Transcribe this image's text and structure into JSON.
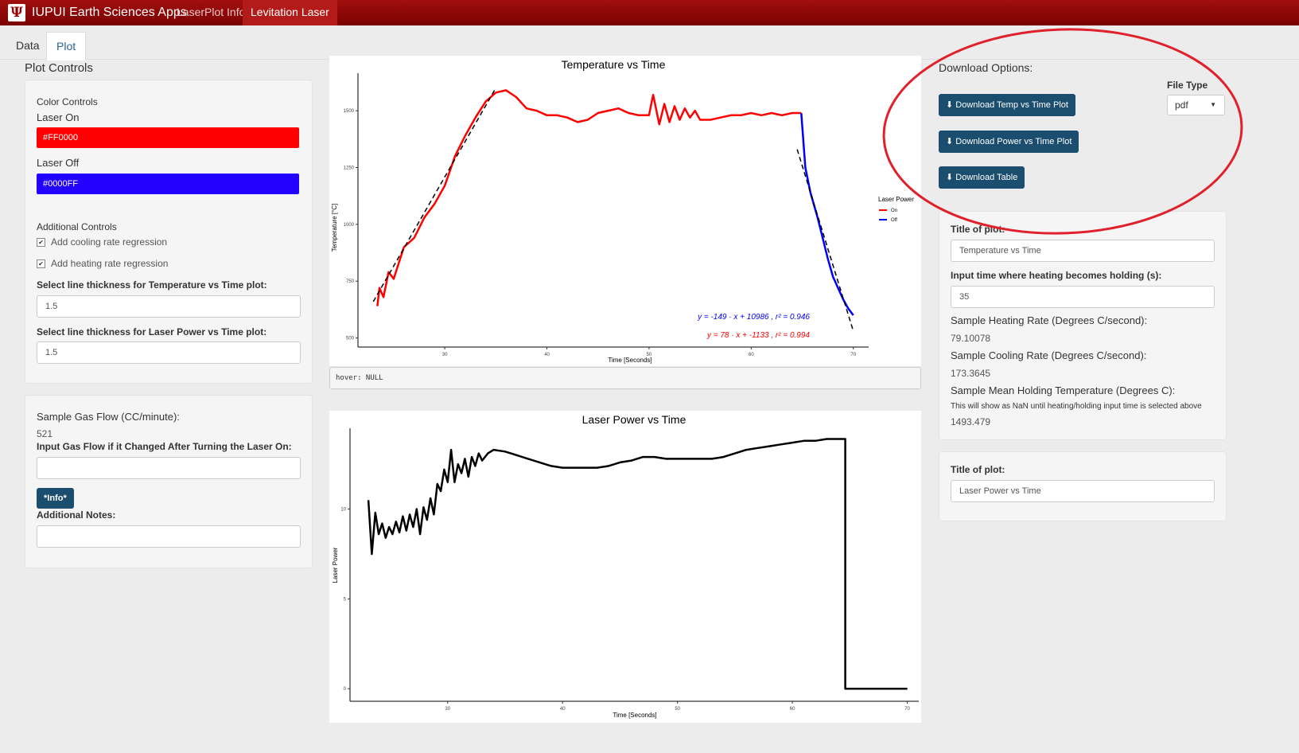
{
  "navbar": {
    "brand": "IUPUI Earth Sciences Apps",
    "logo_glyph": "Ψ",
    "items": [
      "LaserPlot Info",
      "Levitation Laser"
    ],
    "active": "Levitation Laser"
  },
  "tabs": {
    "items": [
      "Data",
      "Plot"
    ],
    "active": "Plot"
  },
  "left": {
    "title": "Plot Controls",
    "color_controls": {
      "heading": "Color Controls",
      "laser_on_label": "Laser On",
      "laser_on_value": "#FF0000",
      "laser_off_label": "Laser Off",
      "laser_off_value": "#0000FF"
    },
    "additional": {
      "heading": "Additional Controls",
      "cooling_label": "Add cooling rate regression",
      "heating_label": "Add heating rate regression",
      "temp_thickness_label": "Select line thickness for Temperature vs Time plot:",
      "temp_thickness_value": "1.5",
      "power_thickness_label": "Select line thickness for Laser Power vs Time plot:",
      "power_thickness_value": "1.5"
    },
    "gas": {
      "heading": "Sample Gas Flow (CC/minute):",
      "value": "521",
      "input_label": "Input Gas Flow if it Changed After Turning the Laser On:",
      "input_value": "",
      "info_button": "*Info*",
      "notes_label": "Additional Notes:",
      "notes_value": ""
    }
  },
  "right": {
    "download_title": "Download Options:",
    "file_type_label": "File Type",
    "file_type_value": "pdf",
    "buttons": [
      "Download Temp vs Time Plot",
      "Download Power vs Time Plot",
      "Download Table"
    ],
    "temp_panel": {
      "title_label": "Title of plot:",
      "title_value": "Temperature vs Time",
      "holding_label": "Input time where heating becomes holding (s):",
      "holding_value": "35",
      "heating_label": "Sample Heating Rate (Degrees C/second):",
      "heating_value": "79.10078",
      "cooling_label": "Sample Cooling Rate (Degrees C/second):",
      "cooling_value": "173.3645",
      "mean_label": "Sample Mean Holding Temperature (Degrees C):",
      "mean_note": "This will show as NaN until heating/holding input time is selected above",
      "mean_value": "1493.479"
    },
    "power_panel": {
      "title_label": "Title of plot:",
      "title_value": "Laser Power vs Time"
    },
    "highlight_color": "#e0202a"
  },
  "hover_text": "hover: NULL",
  "chart_data": [
    {
      "type": "line",
      "title": "Temperature vs Time",
      "xlabel": "Time [Seconds]",
      "ylabel": "Temperature [°C]",
      "xlim": [
        21.5,
        71.5
      ],
      "ylim": [
        460,
        1665
      ],
      "xticks": [
        30,
        40,
        50,
        60,
        70
      ],
      "yticks": [
        500,
        750,
        1000,
        1250,
        1500
      ],
      "legend": {
        "title": "Laser Power",
        "entries": [
          "On",
          "Off"
        ],
        "colors": [
          "#FF0000",
          "#0000FF"
        ],
        "position": "right"
      },
      "grid": false,
      "series": [
        {
          "name": "On",
          "color": "#FF0000",
          "x": [
            23.4,
            23.6,
            24,
            24.5,
            25,
            26,
            27,
            28,
            29,
            30,
            31,
            32,
            33,
            34,
            35,
            36,
            37,
            38,
            39,
            40,
            41,
            42,
            43,
            44,
            45,
            46,
            47,
            48,
            49,
            50,
            50.4,
            51,
            51.5,
            52,
            52.5,
            53,
            53.5,
            54,
            54.5,
            55,
            56,
            57,
            58,
            59,
            60,
            61,
            62,
            63,
            64,
            64.9
          ],
          "y": [
            640,
            720,
            680,
            790,
            760,
            900,
            940,
            1030,
            1090,
            1170,
            1300,
            1390,
            1470,
            1540,
            1580,
            1590,
            1560,
            1510,
            1500,
            1480,
            1480,
            1470,
            1450,
            1460,
            1490,
            1500,
            1510,
            1490,
            1480,
            1480,
            1570,
            1440,
            1530,
            1450,
            1520,
            1460,
            1510,
            1470,
            1500,
            1460,
            1460,
            1470,
            1480,
            1480,
            1490,
            1480,
            1490,
            1480,
            1490,
            1490
          ]
        },
        {
          "name": "Off",
          "color": "#0000FF",
          "x": [
            64.9,
            65.3,
            65.8,
            66.5,
            67,
            67.5,
            68,
            68.5,
            69,
            69.5,
            70
          ],
          "y": [
            1490,
            1250,
            1140,
            1030,
            940,
            850,
            770,
            720,
            670,
            630,
            600
          ]
        }
      ],
      "regressions": [
        {
          "label": "y = -149 · x + 10986 , r² = 0.946",
          "color": "#0000FF",
          "x": [
            64.5,
            70
          ],
          "y": [
            1330,
            530
          ]
        },
        {
          "label": "y = 78 · x + -1133 , r² = 0.994",
          "color": "#FF0000",
          "x": [
            23,
            35
          ],
          "y": [
            660,
            1600
          ]
        }
      ]
    },
    {
      "type": "line",
      "title": "Laser Power vs Time",
      "xlabel": "Time [Seconds]",
      "ylabel": "Laser Power",
      "xlim": [
        21.5,
        71
      ],
      "ylim": [
        -0.7,
        14.5
      ],
      "xticks": [
        30,
        40,
        50,
        60,
        70
      ],
      "yticks": [
        0,
        5,
        10
      ],
      "grid": false,
      "series": [
        {
          "color": "#000000",
          "x": [
            23.1,
            23.4,
            23.7,
            24,
            24.3,
            24.6,
            24.9,
            25.2,
            25.5,
            25.8,
            26.1,
            26.4,
            26.7,
            27,
            27.3,
            27.6,
            27.9,
            28.2,
            28.5,
            28.8,
            29.1,
            29.4,
            29.7,
            30,
            30.3,
            30.6,
            30.9,
            31.2,
            31.5,
            31.8,
            32.1,
            32.4,
            32.7,
            33,
            33.5,
            34,
            35,
            36,
            37,
            38,
            39,
            40,
            41,
            42,
            43,
            44,
            45,
            46,
            47,
            48,
            49,
            50,
            51,
            52,
            53,
            54,
            55,
            56,
            57,
            58,
            59,
            60,
            61,
            62,
            63,
            64,
            64.6,
            64.6,
            65,
            70
          ],
          "y": [
            10.5,
            7.5,
            9.8,
            8.6,
            9.2,
            8.4,
            9.0,
            8.6,
            9.3,
            8.7,
            9.6,
            8.8,
            9.7,
            9.0,
            10.0,
            8.6,
            10.1,
            9.4,
            10.6,
            9.7,
            11.4,
            11.0,
            12.2,
            11.5,
            13.3,
            11.5,
            12.5,
            12.0,
            12.8,
            11.8,
            12.9,
            12.4,
            13.1,
            12.7,
            13.1,
            13.3,
            13.2,
            13.0,
            12.8,
            12.6,
            12.4,
            12.3,
            12.3,
            12.3,
            12.3,
            12.4,
            12.6,
            12.7,
            12.9,
            12.9,
            12.8,
            12.8,
            12.8,
            12.8,
            12.8,
            12.9,
            13.1,
            13.3,
            13.4,
            13.5,
            13.6,
            13.7,
            13.8,
            13.8,
            13.9,
            13.9,
            13.9,
            0.0,
            0.0,
            0.0
          ]
        }
      ]
    }
  ]
}
